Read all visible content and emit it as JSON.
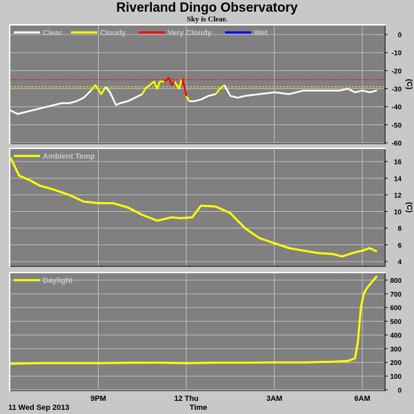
{
  "page": {
    "title": "Riverland Dingo Observatory",
    "subtitle": "Sky is Clear.",
    "date_label": "11 Wed Sep 2013",
    "time_label": "Time"
  },
  "colors": {
    "background": "#c8c8c8",
    "plot_bg": "#808080",
    "grid": "#c0c0c0",
    "clear": "#ffffff",
    "cloudy": "#ffff00",
    "very_cloudy": "#ff0000",
    "wet": "#0000ff",
    "ambient": "#ffff00",
    "daylight": "#ffff00"
  },
  "x_axis": {
    "unit": "hours since 18:00, 11 Sep 2013",
    "range": [
      0,
      12.75
    ],
    "ticks": [
      {
        "x": 3,
        "label": "9PM"
      },
      {
        "x": 6,
        "label": "12 Thu"
      },
      {
        "x": 9,
        "label": "3AM"
      },
      {
        "x": 12,
        "label": "6AM"
      }
    ]
  },
  "chart_data": [
    {
      "type": "line",
      "name": "sky",
      "ylim": [
        -60,
        5
      ],
      "yticks": [
        0,
        -10,
        -20,
        -30,
        -40,
        -50,
        -60
      ],
      "unit_label": "(C)",
      "legend": [
        {
          "label": "Clear",
          "color": "#ffffff"
        },
        {
          "label": "Cloudy",
          "color": "#ffff00"
        },
        {
          "label": "Very Cloudy",
          "color": "#ff0000"
        },
        {
          "label": "Wet",
          "color": "#0000ff"
        }
      ],
      "thresholds": [
        {
          "y": -25,
          "color": "#ff0000"
        },
        {
          "y": -29,
          "color": "#ffff00"
        }
      ],
      "x": [
        0.0,
        0.25,
        0.5,
        0.75,
        1.0,
        1.25,
        1.5,
        1.75,
        2.0,
        2.25,
        2.5,
        2.75,
        2.9,
        3.1,
        3.25,
        3.4,
        3.6,
        3.75,
        4.0,
        4.25,
        4.5,
        4.6,
        4.75,
        4.9,
        5.0,
        5.1,
        5.25,
        5.4,
        5.5,
        5.6,
        5.75,
        5.85,
        5.95,
        6.0,
        6.1,
        6.25,
        6.5,
        6.75,
        7.0,
        7.15,
        7.3,
        7.5,
        7.75,
        8.0,
        8.5,
        9.0,
        9.5,
        10.0,
        10.5,
        11.0,
        11.25,
        11.5,
        11.75,
        12.0,
        12.25,
        12.5
      ],
      "y": [
        -42,
        -44,
        -43,
        -42,
        -41,
        -40,
        -39,
        -38,
        -38,
        -37,
        -35,
        -31,
        -28,
        -33,
        -29,
        -32,
        -39,
        -38,
        -37,
        -35,
        -33,
        -30,
        -28,
        -26,
        -30,
        -26,
        -26,
        -24,
        -28,
        -26,
        -30,
        -24,
        -30,
        -34,
        -37,
        -37,
        -36,
        -34,
        -33,
        -30,
        -28,
        -34,
        -35,
        -34,
        -33,
        -32,
        -33,
        -31,
        -31,
        -31,
        -31,
        -30,
        -32,
        -31,
        -32,
        -31
      ],
      "segments": [
        {
          "from": 0,
          "to": 11,
          "status": "clear"
        },
        {
          "from": 11,
          "to": 14,
          "status": "cloudy"
        },
        {
          "from": 14,
          "to": 20,
          "status": "clear"
        },
        {
          "from": 20,
          "to": 26,
          "status": "cloudy"
        },
        {
          "from": 26,
          "to": 29,
          "status": "very_cloudy"
        },
        {
          "from": 29,
          "to": 31,
          "status": "cloudy"
        },
        {
          "from": 31,
          "to": 33,
          "status": "very_cloudy"
        },
        {
          "from": 33,
          "to": 34,
          "status": "cloudy"
        },
        {
          "from": 34,
          "to": 38,
          "status": "clear"
        },
        {
          "from": 38,
          "to": 40,
          "status": "cloudy"
        },
        {
          "from": 40,
          "to": 55,
          "status": "clear"
        }
      ]
    },
    {
      "type": "line",
      "name": "Ambient Temp",
      "ylim": [
        3.5,
        17.5
      ],
      "yticks": [
        16,
        14,
        12,
        10,
        8,
        6,
        4
      ],
      "unit_label": "(C)",
      "legend": [
        {
          "label": "Ambient Temp",
          "color": "#ffff00"
        }
      ],
      "x": [
        0.0,
        0.3,
        0.7,
        1.0,
        1.5,
        2.0,
        2.5,
        3.0,
        3.5,
        4.0,
        4.5,
        5.0,
        5.5,
        5.8,
        6.2,
        6.5,
        7.0,
        7.5,
        8.0,
        8.5,
        9.0,
        9.5,
        10.0,
        10.5,
        11.0,
        11.3,
        11.75,
        12.0,
        12.25,
        12.5
      ],
      "y": [
        16.5,
        14.3,
        13.7,
        13.1,
        12.6,
        12.0,
        11.2,
        11.0,
        11.0,
        10.5,
        9.6,
        8.9,
        9.3,
        9.2,
        9.3,
        10.7,
        10.6,
        9.8,
        8.0,
        6.8,
        6.2,
        5.6,
        5.3,
        5.0,
        4.9,
        4.6,
        5.1,
        5.3,
        5.6,
        5.2
      ]
    },
    {
      "type": "line",
      "name": "Daylight",
      "ylim": [
        0,
        850
      ],
      "yticks": [
        800,
        700,
        600,
        500,
        400,
        300,
        200,
        100,
        0
      ],
      "unit_label": "",
      "legend": [
        {
          "label": "Daylight",
          "color": "#ffff00"
        }
      ],
      "x": [
        0.0,
        1.0,
        2.0,
        3.0,
        4.0,
        5.0,
        6.0,
        7.0,
        8.0,
        9.0,
        10.0,
        11.0,
        11.5,
        11.75,
        11.85,
        11.95,
        12.05,
        12.15,
        12.3,
        12.5
      ],
      "y": [
        190,
        195,
        195,
        195,
        197,
        198,
        195,
        198,
        198,
        200,
        200,
        205,
        210,
        230,
        350,
        600,
        700,
        740,
        780,
        830
      ]
    }
  ]
}
